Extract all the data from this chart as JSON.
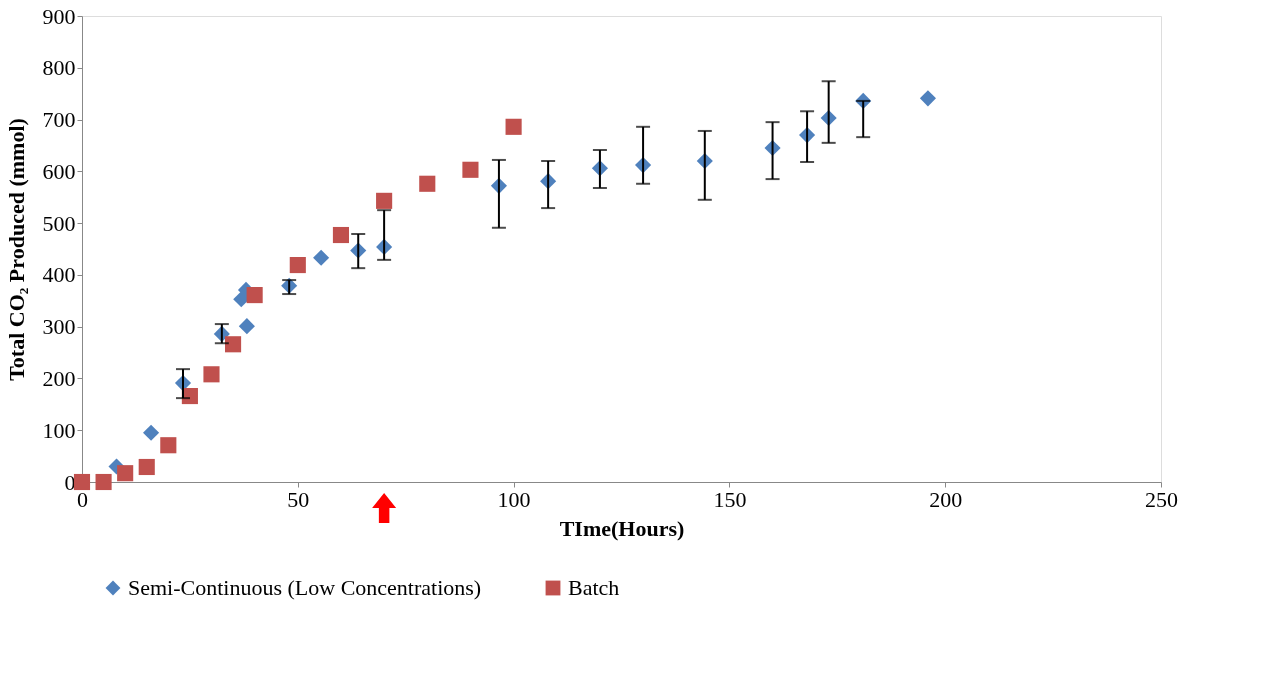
{
  "chart_data": {
    "type": "scatter",
    "xlabel": "TIme(Hours)",
    "ylabel": "Total CO₂ Produced (mmol)",
    "xlim": [
      0,
      250
    ],
    "xticks": [
      0,
      50,
      100,
      150,
      200,
      250
    ],
    "ylim": [
      0,
      900
    ],
    "yticks": [
      0,
      100,
      200,
      300,
      400,
      500,
      600,
      700,
      800,
      900
    ],
    "grid": false,
    "legend": "bottom",
    "series": [
      {
        "name": "Semi-Continuous (Low Concentrations)",
        "color": "#4f81bd",
        "marker": "diamond",
        "x": [
          8,
          16,
          23.4,
          32.4,
          36.9,
          38,
          38.2,
          48,
          55.4,
          64,
          70,
          96.6,
          108,
          120,
          130,
          144.3,
          160,
          168,
          173,
          181,
          196
        ],
        "values": [
          30,
          95,
          191,
          286,
          353,
          371,
          301,
          379,
          433,
          447,
          454,
          572,
          581,
          606,
          612,
          620,
          645,
          670,
          703,
          736,
          741
        ],
        "errors": [
          null,
          null,
          [
            162,
            218
          ],
          [
            268,
            305
          ],
          null,
          null,
          null,
          [
            363,
            390
          ],
          null,
          [
            413,
            479
          ],
          [
            429,
            525
          ],
          [
            491,
            622
          ],
          [
            529,
            620
          ],
          [
            568,
            641
          ],
          [
            576,
            686
          ],
          [
            545,
            678
          ],
          [
            585,
            695
          ],
          [
            618,
            716
          ],
          [
            655,
            774
          ],
          [
            666,
            736
          ],
          null
        ]
      },
      {
        "name": "Batch",
        "color": "#c0504d",
        "marker": "square",
        "x": [
          0,
          5,
          10,
          15,
          20,
          25,
          30,
          35,
          40,
          50,
          60,
          70,
          80,
          90,
          100
        ],
        "values": [
          0,
          0,
          17,
          29,
          71,
          166,
          208,
          266,
          361,
          419,
          477,
          543,
          576,
          603,
          686
        ]
      }
    ]
  }
}
